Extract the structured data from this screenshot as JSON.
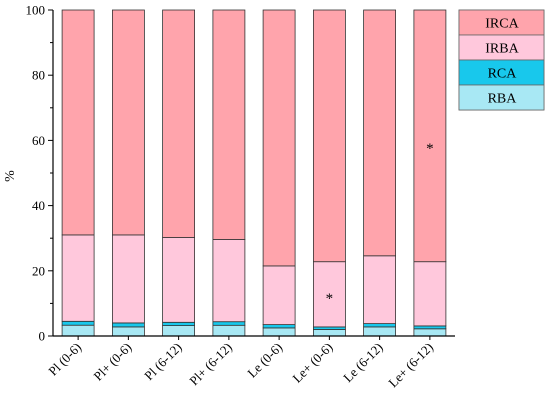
{
  "colors": {
    "RBA": "#a8e8f4",
    "RCA": "#18c8ec",
    "IRBA": "#ffc8dc",
    "IRCA": "#ffa4ac"
  },
  "chart_data": {
    "type": "bar",
    "stacked": true,
    "categories": [
      "Pl (0-6)",
      "Pl+ (0-6)",
      "Pl (6-12)",
      "Pl+ (6-12)",
      "Le (0-6)",
      "Le+ (0-6)",
      "Le (6-12)",
      "Le+ (6-12)"
    ],
    "series": [
      {
        "name": "RBA",
        "values": [
          3.3,
          2.8,
          3.2,
          3.3,
          2.5,
          2.0,
          2.8,
          2.2
        ]
      },
      {
        "name": "RCA",
        "values": [
          1.2,
          1.2,
          1.0,
          1.1,
          1.0,
          0.8,
          1.0,
          0.9
        ]
      },
      {
        "name": "IRBA",
        "values": [
          26.5,
          27.0,
          26.0,
          25.2,
          18.0,
          20.0,
          20.8,
          19.7
        ]
      },
      {
        "name": "IRCA",
        "values": [
          69.0,
          69.0,
          69.8,
          70.4,
          78.5,
          77.2,
          75.4,
          77.2
        ]
      }
    ],
    "legend_order": [
      "IRCA",
      "IRBA",
      "RCA",
      "RBA"
    ],
    "legend_position": "top-right",
    "ylabel": "%",
    "xlabel": "",
    "ylim": [
      0,
      100
    ],
    "yticks": [
      "0",
      "20",
      "40",
      "60",
      "80",
      "100"
    ],
    "grid": false,
    "annotations": [
      {
        "text": "*",
        "category": "Le+ (0-6)",
        "y": 12
      },
      {
        "text": "*",
        "category": "Le+ (6-12)",
        "y": 58
      }
    ]
  }
}
